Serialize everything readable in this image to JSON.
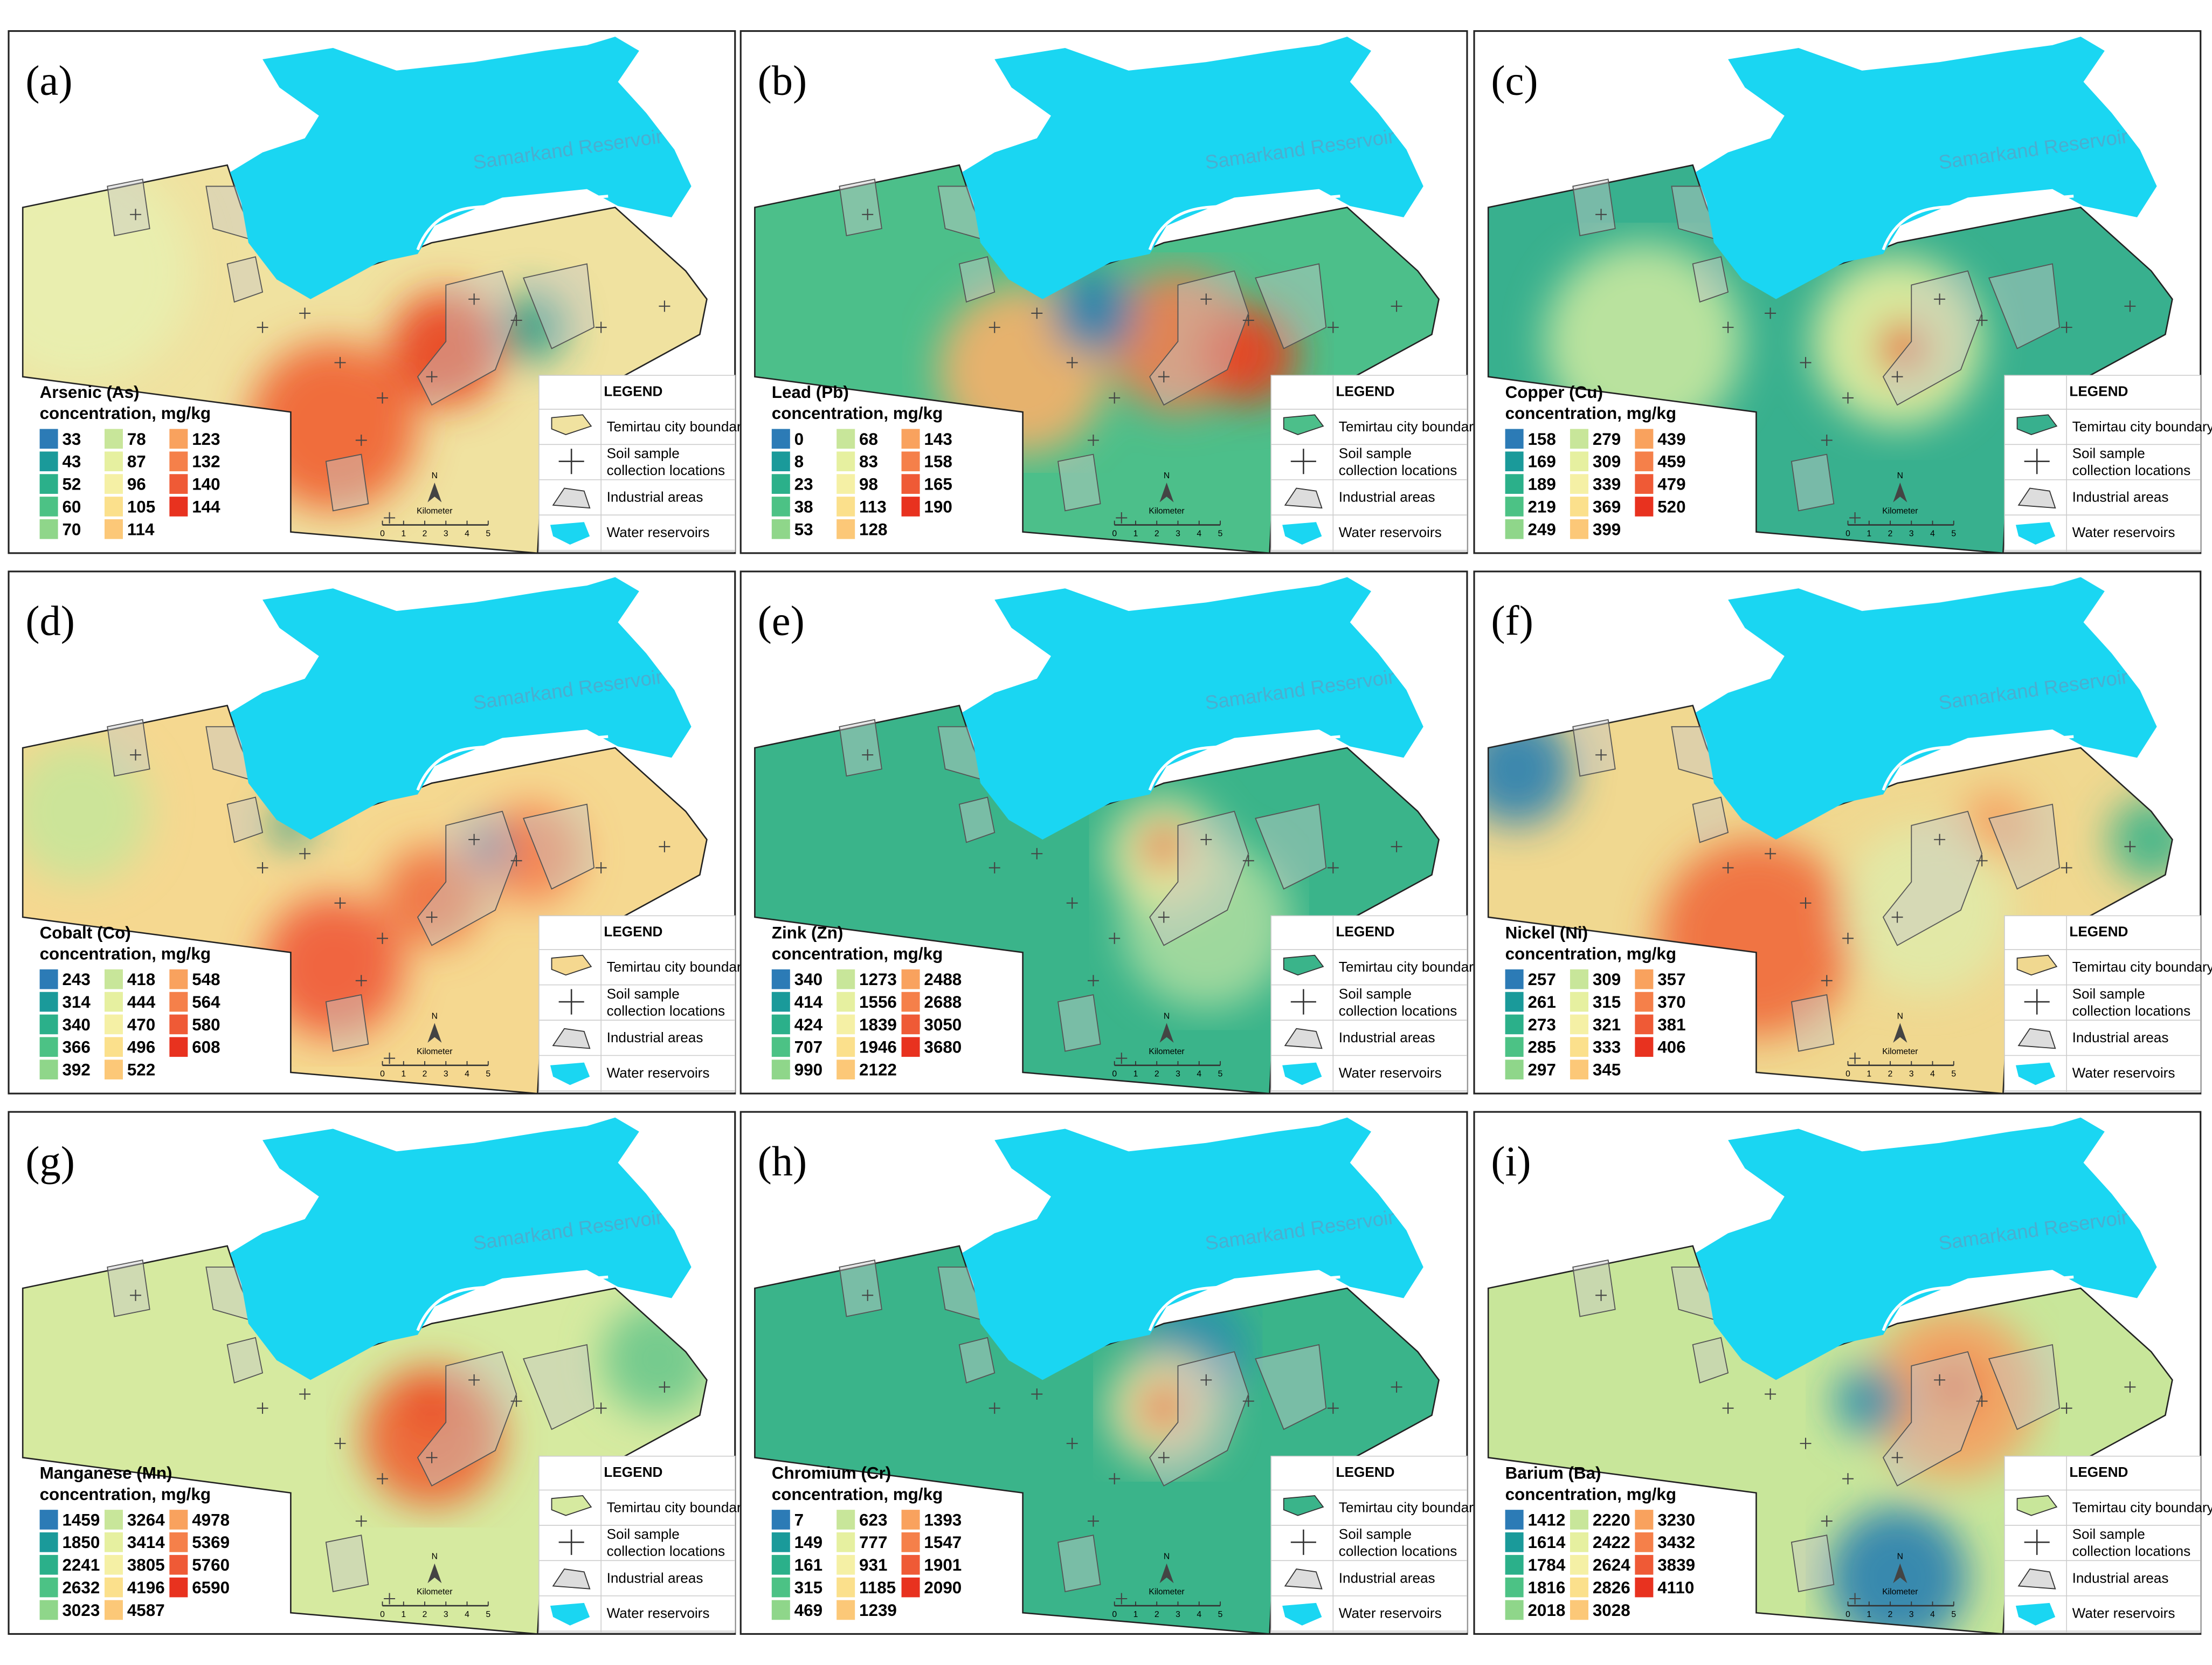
{
  "panels": [
    {
      "label": "(a)",
      "element": "Arsenic (As)",
      "classes": [
        33,
        43,
        52,
        60,
        70,
        78,
        87,
        96,
        105,
        114,
        123,
        132,
        140,
        144
      ]
    },
    {
      "label": "(b)",
      "element": "Lead (Pb)",
      "classes": [
        0,
        8,
        23,
        38,
        53,
        68,
        83,
        98,
        113,
        128,
        143,
        158,
        165,
        190
      ]
    },
    {
      "label": "(c)",
      "element": "Copper (Cu)",
      "classes": [
        158,
        169,
        189,
        219,
        249,
        279,
        309,
        339,
        369,
        399,
        439,
        459,
        479,
        520
      ]
    },
    {
      "label": "(d)",
      "element": "Cobalt (Co)",
      "classes": [
        243,
        314,
        340,
        366,
        392,
        418,
        444,
        470,
        496,
        522,
        548,
        564,
        580,
        608
      ]
    },
    {
      "label": "(e)",
      "element": "Zink (Zn)",
      "classes": [
        340,
        414,
        424,
        707,
        990,
        1273,
        1556,
        1839,
        1946,
        2122,
        2488,
        2688,
        3050,
        3680
      ]
    },
    {
      "label": "(f)",
      "element": "Nickel (Ni)",
      "classes": [
        257,
        261,
        273,
        285,
        297,
        309,
        315,
        321,
        333,
        345,
        357,
        370,
        381,
        406
      ]
    },
    {
      "label": "(g)",
      "element": "Manganese (Mn)",
      "classes": [
        1459,
        1850,
        2241,
        2632,
        3023,
        3264,
        3414,
        3805,
        4196,
        4587,
        4978,
        5369,
        5760,
        6590
      ]
    },
    {
      "label": "(h)",
      "element": "Chromium (Cr)",
      "classes": [
        7,
        149,
        161,
        315,
        469,
        623,
        777,
        931,
        1185,
        1239,
        1393,
        1547,
        1901,
        2090
      ]
    },
    {
      "label": "(i)",
      "element": "Barium (Ba)",
      "classes": [
        1412,
        1614,
        1784,
        1816,
        2018,
        2220,
        2422,
        2624,
        2826,
        3028,
        3230,
        3432,
        3839,
        4110
      ]
    }
  ],
  "unit": "concentration, mg/kg",
  "class_colors": [
    "#2c7bb6",
    "#1a9a9a",
    "#2bb08a",
    "#4cc285",
    "#8fd68a",
    "#c8e69a",
    "#e6f0a0",
    "#f5f0a5",
    "#fbe08c",
    "#fcc878",
    "#f9a25e",
    "#f5804a",
    "#ef5a36",
    "#e8321f"
  ],
  "legend": {
    "title": "LEGEND",
    "boundary": "Temirtau city boundary",
    "samples_1": "Soil sample",
    "samples_2": "collection locations",
    "industrial": "Industrial areas",
    "water": "Water reservoirs"
  },
  "reservoir_label": "Samarkand Reservoir",
  "scale": {
    "title": "Kilometer",
    "ticks": [
      0,
      1,
      2,
      3,
      4,
      5
    ]
  },
  "north": "N"
}
